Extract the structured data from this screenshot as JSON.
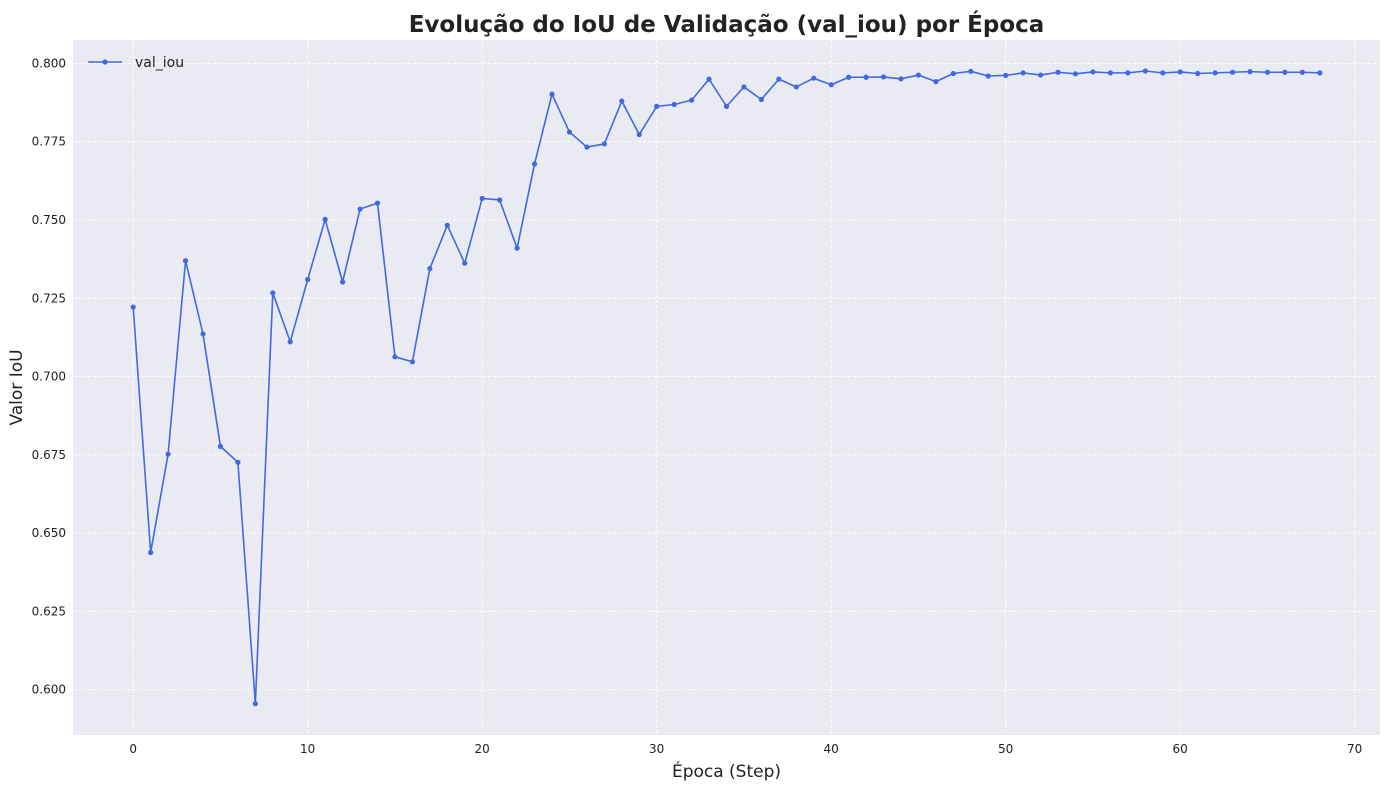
{
  "chart_data": {
    "type": "line",
    "title": "Evolução do IoU de Validação (val_iou) por Época",
    "xlabel": "Época (Step)",
    "ylabel": "Valor IoU",
    "xlim": [
      -3.45,
      71.45
    ],
    "ylim": [
      0.5855,
      0.8075
    ],
    "xticks": [
      0,
      10,
      20,
      30,
      40,
      50,
      60,
      70
    ],
    "xtick_labels": [
      "0",
      "10",
      "20",
      "30",
      "40",
      "50",
      "60",
      "70"
    ],
    "yticks": [
      0.6,
      0.625,
      0.65,
      0.675,
      0.7,
      0.725,
      0.75,
      0.775,
      0.8
    ],
    "ytick_labels": [
      "0.600",
      "0.625",
      "0.650",
      "0.675",
      "0.700",
      "0.725",
      "0.750",
      "0.775",
      "0.800"
    ],
    "grid": true,
    "legend_position": "top-left",
    "series": [
      {
        "name": "val_iou",
        "color": "#4169e1",
        "x": [
          0,
          1,
          2,
          3,
          4,
          5,
          6,
          7,
          8,
          9,
          10,
          11,
          12,
          13,
          14,
          15,
          16,
          17,
          18,
          19,
          20,
          21,
          22,
          23,
          24,
          25,
          26,
          27,
          28,
          29,
          30,
          31,
          32,
          33,
          34,
          35,
          36,
          37,
          38,
          39,
          40,
          41,
          42,
          43,
          44,
          45,
          46,
          47,
          48,
          49,
          50,
          51,
          52,
          53,
          54,
          55,
          56,
          57,
          58,
          59,
          60,
          61,
          62,
          63,
          64,
          65,
          66,
          67,
          68
        ],
        "values": [
          0.7222,
          0.6438,
          0.6752,
          0.737,
          0.7136,
          0.6777,
          0.6726,
          0.5955,
          0.7267,
          0.7111,
          0.731,
          0.7502,
          0.7302,
          0.7535,
          0.7554,
          0.7063,
          0.7047,
          0.7345,
          0.7483,
          0.7362,
          0.7569,
          0.7564,
          0.741,
          0.7679,
          0.7902,
          0.7781,
          0.7733,
          0.7743,
          0.788,
          0.7773,
          0.7863,
          0.7869,
          0.7883,
          0.795,
          0.7863,
          0.7925,
          0.7885,
          0.795,
          0.7925,
          0.7953,
          0.7932,
          0.7956,
          0.7956,
          0.7957,
          0.7951,
          0.7963,
          0.7942,
          0.7968,
          0.7975,
          0.796,
          0.7962,
          0.797,
          0.7963,
          0.7972,
          0.7967,
          0.7973,
          0.797,
          0.797,
          0.7976,
          0.797,
          0.7973,
          0.7968,
          0.797,
          0.7972,
          0.7974,
          0.7972,
          0.7972,
          0.7972,
          0.797
        ]
      }
    ]
  }
}
